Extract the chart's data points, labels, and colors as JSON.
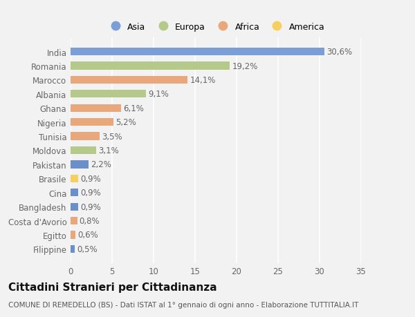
{
  "categories": [
    "India",
    "Romania",
    "Marocco",
    "Albania",
    "Ghana",
    "Nigeria",
    "Tunisia",
    "Moldova",
    "Pakistan",
    "Brasile",
    "Cina",
    "Bangladesh",
    "Costa d'Avorio",
    "Egitto",
    "Filippine"
  ],
  "values": [
    30.6,
    19.2,
    14.1,
    9.1,
    6.1,
    5.2,
    3.5,
    3.1,
    2.2,
    0.9,
    0.9,
    0.9,
    0.8,
    0.6,
    0.5
  ],
  "labels": [
    "30,6%",
    "19,2%",
    "14,1%",
    "9,1%",
    "6,1%",
    "5,2%",
    "3,5%",
    "3,1%",
    "2,2%",
    "0,9%",
    "0,9%",
    "0,9%",
    "0,8%",
    "0,6%",
    "0,5%"
  ],
  "colors": [
    "#7b9fd4",
    "#b5c98a",
    "#e8a87c",
    "#b5c98a",
    "#e8a87c",
    "#e8a87c",
    "#e8a87c",
    "#b5c98a",
    "#6b8fc9",
    "#f5d060",
    "#6b8fc9",
    "#6b8fc9",
    "#e8a87c",
    "#e8a87c",
    "#6b8fc9"
  ],
  "legend_labels": [
    "Asia",
    "Europa",
    "Africa",
    "America"
  ],
  "legend_colors": [
    "#7b9fd4",
    "#b5c98a",
    "#e8a87c",
    "#f5d060"
  ],
  "title": "Cittadini Stranieri per Cittadinanza",
  "subtitle": "COMUNE DI REMEDELLO (BS) - Dati ISTAT al 1° gennaio di ogni anno - Elaborazione TUTTITALIA.IT",
  "xlim": [
    0,
    35
  ],
  "xticks": [
    0,
    5,
    10,
    15,
    20,
    25,
    30,
    35
  ],
  "background_color": "#f2f2f2",
  "grid_color": "#ffffff",
  "bar_height": 0.55,
  "label_fontsize": 8.5,
  "tick_fontsize": 8.5,
  "title_fontsize": 11,
  "subtitle_fontsize": 7.5
}
